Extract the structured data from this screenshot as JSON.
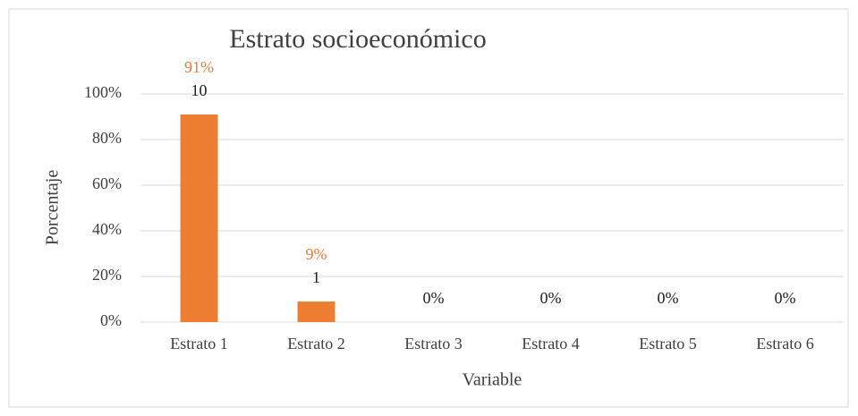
{
  "chart_data": {
    "type": "bar",
    "title": "Estrato socioeconómico",
    "x_label": "Variable",
    "y_label": "Porcentaje",
    "categories": [
      "Estrato 1",
      "Estrato 2",
      "Estrato 3",
      "Estrato 4",
      "Estrato 5",
      "Estrato 6"
    ],
    "values": [
      91,
      9,
      0,
      0,
      0,
      0
    ],
    "value_labels": [
      "91%",
      "9%",
      "0%",
      "0%",
      "0%",
      "0%"
    ],
    "value_label_colors": [
      "#ed7d31",
      "#ed7d31",
      "#222222",
      "#222222",
      "#222222",
      "#222222"
    ],
    "counts": [
      10,
      1,
      null,
      null,
      null,
      null
    ],
    "color": "#ed7d31",
    "ylim": [
      0,
      100
    ],
    "yticks": [
      {
        "value": 0,
        "label": "0%"
      },
      {
        "value": 20,
        "label": "20%"
      },
      {
        "value": 40,
        "label": "40%"
      },
      {
        "value": 60,
        "label": "60%"
      },
      {
        "value": 80,
        "label": "80%"
      },
      {
        "value": 100,
        "label": "100%"
      }
    ],
    "grid": true
  }
}
